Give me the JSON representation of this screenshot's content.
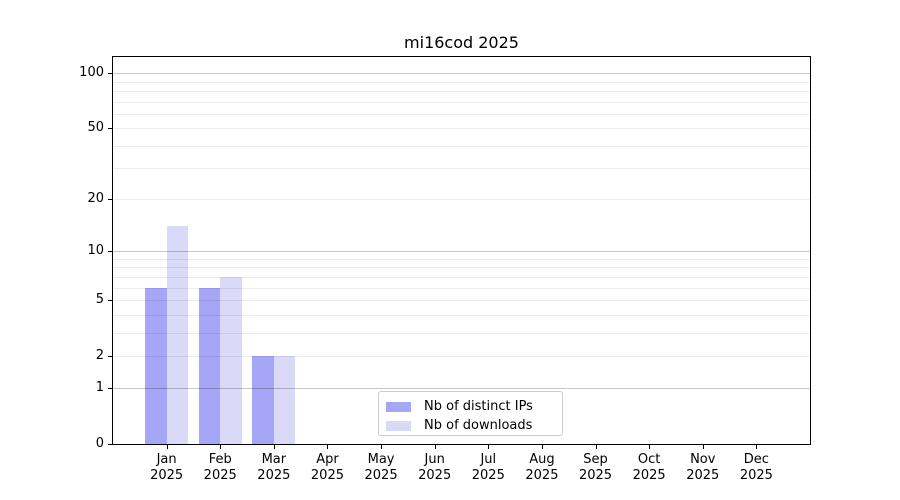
{
  "chart_data": {
    "type": "bar",
    "title": "mi16cod 2025",
    "x": {
      "categories": [
        "Jan",
        "Feb",
        "Mar",
        "Apr",
        "May",
        "Jun",
        "Jul",
        "Aug",
        "Sep",
        "Oct",
        "Nov",
        "Dec"
      ],
      "year": "2025"
    },
    "series": [
      {
        "name": "Nb of distinct IPs",
        "color": "#a6a6f6",
        "values": [
          6,
          6,
          2,
          0,
          0,
          0,
          0,
          0,
          0,
          0,
          0,
          0
        ]
      },
      {
        "name": "Nb of downloads",
        "color": "#dadaf8",
        "values": [
          14,
          7,
          2,
          0,
          0,
          0,
          0,
          0,
          0,
          0,
          0,
          0
        ]
      }
    ],
    "y_axis": {
      "scale": "log1p",
      "tick_labels": [
        "0",
        "1",
        "2",
        "5",
        "10",
        "20",
        "50",
        "100"
      ],
      "tick_values": [
        0,
        1,
        2,
        5,
        10,
        20,
        50,
        100
      ],
      "minor_gridlines": [
        2,
        3,
        4,
        5,
        6,
        7,
        8,
        9,
        20,
        30,
        40,
        50,
        60,
        70,
        80,
        90
      ],
      "major_gridlines": [
        1,
        10,
        100
      ],
      "range": [
        0,
        122
      ]
    },
    "legend": {
      "position": "bottom-center"
    },
    "grid": true,
    "colors": {
      "grid_minor": "#ebebeb",
      "grid_major": "#c7c7c7",
      "axis": "#000000",
      "background": "#ffffff"
    }
  }
}
